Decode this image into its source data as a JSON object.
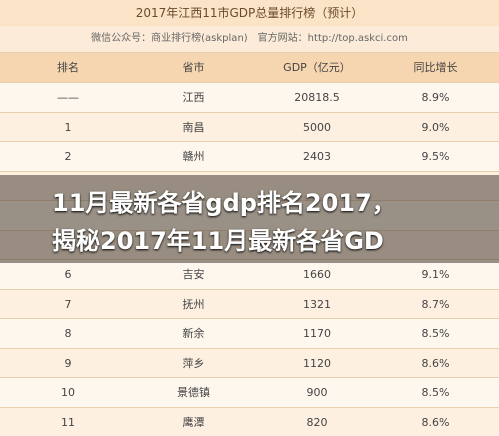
{
  "header": {
    "title": "2017年江西11市GDP总量排行榜（预计）",
    "subtitle": "微信公众号：商业排行榜(askplan)　官方网站：http://top.askci.com"
  },
  "table": {
    "columns": [
      "排名",
      "省市",
      "GDP（亿元）",
      "同比增长"
    ],
    "rows": [
      [
        "——",
        "江西",
        "20818.5",
        "8.9%"
      ],
      [
        "1",
        "南昌",
        "5000",
        "9.0%"
      ],
      [
        "2",
        "赣州",
        "2403",
        "9.5%"
      ],
      [
        "6",
        "吉安",
        "1660",
        "9.1%"
      ],
      [
        "7",
        "抚州",
        "1321",
        "8.7%"
      ],
      [
        "8",
        "新余",
        "1170",
        "8.5%"
      ],
      [
        "9",
        "萍乡",
        "1120",
        "8.6%"
      ],
      [
        "10",
        "景德镇",
        "900",
        "8.5%"
      ],
      [
        "11",
        "鹰潭",
        "820",
        "8.6%"
      ]
    ]
  },
  "overlay": {
    "lines": [
      "11月最新各省gdp排名2017，",
      "揭秘2017年11月最新各省GD"
    ]
  }
}
